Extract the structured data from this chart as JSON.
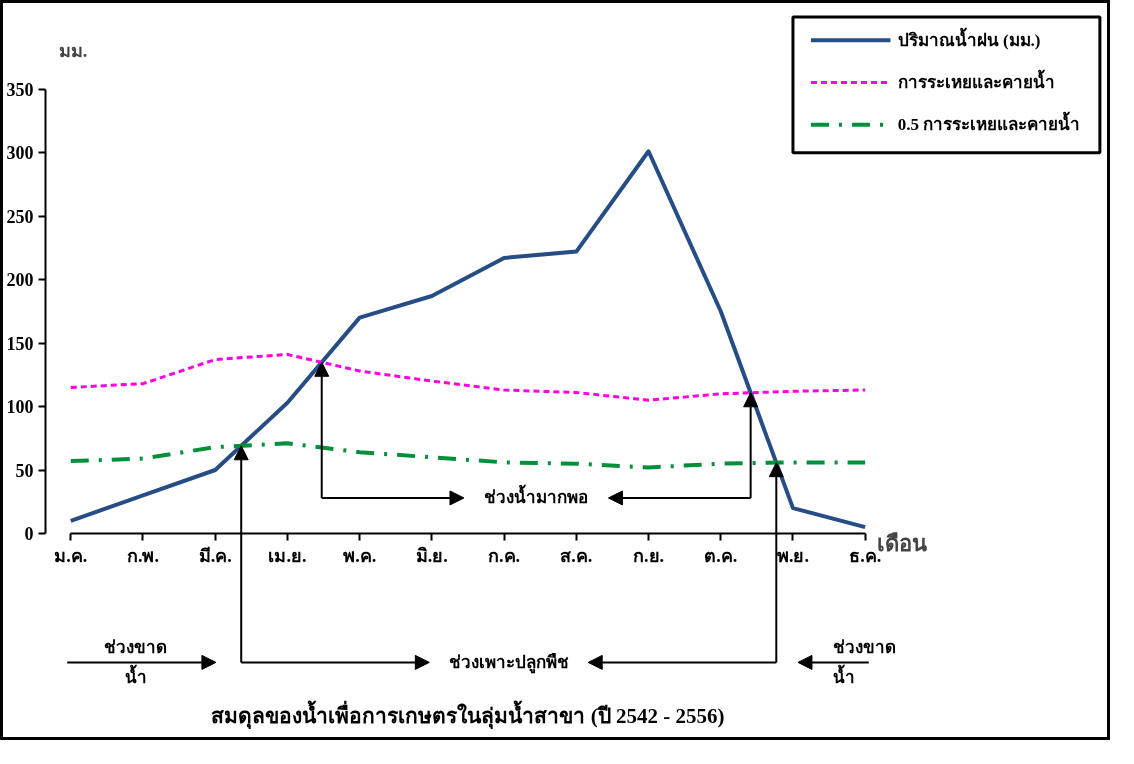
{
  "chart_data": {
    "type": "line",
    "title": "สมดุลของน้ำเพื่อการเกษตรในลุ่มน้ำสาขา (ปี 2542 - 2556)",
    "xlabel": "เดือน",
    "ylabel": "มม.",
    "categories": [
      "ม.ค.",
      "ก.พ.",
      "มี.ค.",
      "เม.ย.",
      "พ.ค.",
      "มิ.ย.",
      "ก.ค.",
      "ส.ค.",
      "ก.ย.",
      "ต.ค.",
      "พ.ย.",
      "ธ.ค."
    ],
    "series": [
      {
        "name": "ปริมาณน้ำฝน (มม.)",
        "color": "#264d85",
        "line_style": "solid",
        "values": [
          10,
          30,
          50,
          103,
          170,
          187,
          217,
          222,
          301,
          175,
          20,
          5
        ]
      },
      {
        "name": "การระเหยและคายน้ำ",
        "color": "#ff00e0",
        "line_style": "dashed",
        "values": [
          115,
          118,
          137,
          141,
          128,
          120,
          113,
          111,
          105,
          110,
          112,
          113
        ]
      },
      {
        "name": "0.5 การระเหยและคายน้ำ",
        "color": "#00903c",
        "line_style": "dashdot",
        "values": [
          57,
          59,
          68,
          71,
          64,
          60,
          56,
          55,
          52,
          55,
          56,
          56
        ]
      }
    ],
    "ylim": [
      0,
      350
    ],
    "yticks": [
      0,
      50,
      100,
      150,
      200,
      250,
      300,
      350
    ],
    "grid": false,
    "legend": "top right",
    "marker": "none",
    "annotations": [
      "ช่วงน้ำมากพอ",
      "ช่วงเพาะปลูกพืช",
      "ช่วงขาด\nน้ำ",
      "ช่วงขาด\nน้ำ"
    ]
  }
}
